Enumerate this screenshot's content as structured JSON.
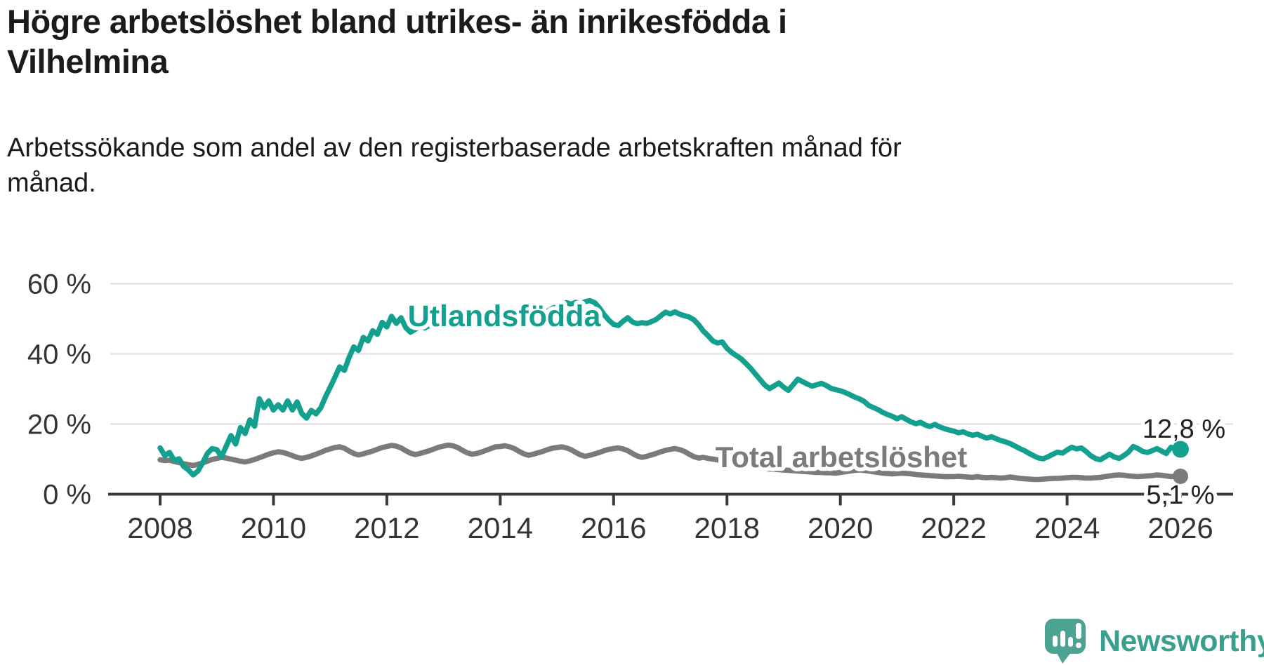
{
  "title": "Högre arbetslöshet bland utrikes- än inrikesfödda i\nVilhelmina",
  "subtitle": "Arbetssökande som andel av den registerbaserade arbetskraften månad för\nmånad.",
  "branding": {
    "logo_text": "Newsworthy",
    "logo_icon": "speech-bubble-bar-chart",
    "logo_bubble_color": "#4CA391",
    "logo_text_color": "#3AA08D"
  },
  "colors": {
    "background": "#ffffff",
    "title_text": "#1b1b1b",
    "axis_text": "#333333",
    "axis_line": "#3a3a3a",
    "gridline": "#dcdcdc",
    "series_utlandsfodda": "#13A08F",
    "series_total": "#7B7B7B",
    "annotation_text": "#222222"
  },
  "chart_data": {
    "type": "line",
    "title": "",
    "xlabel": "",
    "ylabel": "",
    "unit": "%",
    "frequency": "monthly",
    "x_start": "2008-01",
    "x_end": "2026-01",
    "ylim": [
      0,
      62
    ],
    "grid": "horizontal",
    "legend_position": "inline-labels",
    "yticks": [
      {
        "value": 0,
        "label": "0 %"
      },
      {
        "value": 20,
        "label": "20 %"
      },
      {
        "value": 40,
        "label": "40 %"
      },
      {
        "value": 60,
        "label": "60 %"
      }
    ],
    "xticks": [
      "2008",
      "2010",
      "2012",
      "2014",
      "2016",
      "2018",
      "2020",
      "2022",
      "2024",
      "2026"
    ],
    "series": [
      {
        "name": "Total arbetslöshet",
        "last_value_label": "5,1 %",
        "values": [
          9.8,
          9.6,
          9.7,
          9.3,
          9.0,
          8.7,
          8.4,
          8.2,
          8.5,
          8.9,
          9.4,
          9.9,
          10.2,
          10.5,
          10.3,
          10.0,
          9.7,
          9.4,
          9.2,
          9.5,
          9.9,
          10.4,
          10.9,
          11.4,
          11.8,
          12.1,
          11.9,
          11.5,
          11.0,
          10.5,
          10.2,
          10.5,
          10.9,
          11.4,
          11.9,
          12.5,
          12.9,
          13.3,
          13.5,
          13.1,
          12.3,
          11.6,
          11.2,
          11.5,
          11.9,
          12.3,
          12.8,
          13.3,
          13.6,
          13.9,
          13.7,
          13.2,
          12.4,
          11.7,
          11.3,
          11.6,
          12.0,
          12.4,
          12.9,
          13.4,
          13.7,
          14.0,
          13.8,
          13.3,
          12.5,
          11.8,
          11.4,
          11.6,
          12.0,
          12.5,
          13.0,
          13.5,
          13.6,
          13.8,
          13.5,
          13.0,
          12.2,
          11.5,
          11.1,
          11.4,
          11.8,
          12.2,
          12.7,
          13.1,
          13.3,
          13.5,
          13.2,
          12.7,
          11.9,
          11.2,
          10.8,
          11.1,
          11.5,
          11.9,
          12.4,
          12.8,
          13.0,
          13.2,
          12.9,
          12.4,
          11.6,
          10.9,
          10.5,
          10.8,
          11.2,
          11.6,
          12.1,
          12.5,
          12.8,
          13.0,
          12.7,
          12.2,
          11.4,
          10.7,
          10.3,
          10.5,
          10.2,
          10.0,
          9.8,
          9.6,
          10.0,
          9.6,
          9.2,
          8.8,
          8.4,
          8.0,
          7.7,
          7.5,
          7.3,
          7.2,
          7.1,
          7.0,
          6.9,
          6.8,
          6.7,
          6.6,
          6.5,
          6.4,
          6.3,
          6.2,
          6.2,
          6.1,
          6.1,
          6.0,
          6.2,
          6.4,
          6.6,
          6.8,
          6.9,
          6.8,
          6.6,
          6.4,
          6.2,
          6.0,
          5.9,
          5.8,
          5.9,
          6.0,
          5.9,
          5.8,
          5.6,
          5.5,
          5.4,
          5.3,
          5.2,
          5.1,
          5.0,
          5.0,
          5.0,
          5.1,
          5.0,
          4.9,
          4.8,
          5.0,
          4.8,
          4.7,
          4.8,
          4.7,
          4.6,
          4.7,
          4.9,
          4.7,
          4.5,
          4.4,
          4.3,
          4.2,
          4.2,
          4.3,
          4.4,
          4.5,
          4.5,
          4.6,
          4.7,
          4.8,
          4.8,
          4.7,
          4.6,
          4.6,
          4.7,
          4.8,
          5.0,
          5.2,
          5.4,
          5.5,
          5.4,
          5.2,
          5.1,
          5.0,
          5.1,
          5.2,
          5.3,
          5.5,
          5.4,
          5.2,
          5.0,
          5.1,
          5.1
        ]
      },
      {
        "name": "Utlandsfödda",
        "last_value_label": "12,8 %",
        "values": [
          13.2,
          11.0,
          11.9,
          9.6,
          10.1,
          7.9,
          6.9,
          5.5,
          6.6,
          8.9,
          11.6,
          13.0,
          12.7,
          10.7,
          13.7,
          16.7,
          14.3,
          19.0,
          17.3,
          21.2,
          19.4,
          27.2,
          24.7,
          26.6,
          24.0,
          25.5,
          24.0,
          26.6,
          24.0,
          26.3,
          23.0,
          21.7,
          23.9,
          22.9,
          24.6,
          27.7,
          30.5,
          33.3,
          36.3,
          35.3,
          39.0,
          42.0,
          41.0,
          44.7,
          43.7,
          46.6,
          45.6,
          49.0,
          47.7,
          50.7,
          48.7,
          50.3,
          47.5,
          46.2,
          47.0,
          47.8,
          47.4,
          48.1,
          47.7,
          48.3,
          48.2,
          48.9,
          48.5,
          49.3,
          48.8,
          49.6,
          49.1,
          49.9,
          49.4,
          50.2,
          49.7,
          50.5,
          50.1,
          50.9,
          50.5,
          51.3,
          50.9,
          51.7,
          51.3,
          52.1,
          51.7,
          52.5,
          52.1,
          53.0,
          53.4,
          54.1,
          54.6,
          54.2,
          54.7,
          54.3,
          54.9,
          55.2,
          54.6,
          53.1,
          51.2,
          49.6,
          48.4,
          48.1,
          49.3,
          50.3,
          49.1,
          48.6,
          48.9,
          48.7,
          49.2,
          49.8,
          50.9,
          51.9,
          51.4,
          52.0,
          51.3,
          50.9,
          50.5,
          49.7,
          48.3,
          46.5,
          45.2,
          43.7,
          43.1,
          43.4,
          41.6,
          40.4,
          39.5,
          38.6,
          37.3,
          35.9,
          34.3,
          32.7,
          31.1,
          30.1,
          30.9,
          31.7,
          30.5,
          29.6,
          31.2,
          32.8,
          32.1,
          31.4,
          30.8,
          31.2,
          31.6,
          31.0,
          30.2,
          29.8,
          29.5,
          29.0,
          28.4,
          27.7,
          27.2,
          26.5,
          25.3,
          24.7,
          24.1,
          23.3,
          22.7,
          22.2,
          21.5,
          22.1,
          21.3,
          20.6,
          20.1,
          20.5,
          19.7,
          19.3,
          19.9,
          19.2,
          18.7,
          18.3,
          18.0,
          17.5,
          17.8,
          17.2,
          16.8,
          17.1,
          16.5,
          16.0,
          16.4,
          15.8,
          15.3,
          14.9,
          14.4,
          13.7,
          13.0,
          12.4,
          11.6,
          10.9,
          10.3,
          10.1,
          10.7,
          11.4,
          12.0,
          11.7,
          12.6,
          13.4,
          12.9,
          13.2,
          12.2,
          11.0,
          10.2,
          9.8,
          10.6,
          11.4,
          10.6,
          10.2,
          11.0,
          12.0,
          13.6,
          13.0,
          12.2,
          11.9,
          12.4,
          13.0,
          12.3,
          11.6,
          13.4,
          12.9,
          12.8
        ]
      }
    ]
  }
}
